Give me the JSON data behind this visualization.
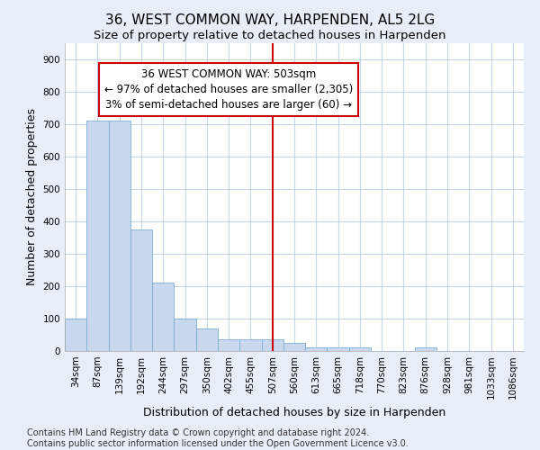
{
  "title": "36, WEST COMMON WAY, HARPENDEN, AL5 2LG",
  "subtitle": "Size of property relative to detached houses in Harpenden",
  "xlabel": "Distribution of detached houses by size in Harpenden",
  "ylabel": "Number of detached properties",
  "categories": [
    "34sqm",
    "87sqm",
    "139sqm",
    "192sqm",
    "244sqm",
    "297sqm",
    "350sqm",
    "402sqm",
    "455sqm",
    "507sqm",
    "560sqm",
    "613sqm",
    "665sqm",
    "718sqm",
    "770sqm",
    "823sqm",
    "876sqm",
    "928sqm",
    "981sqm",
    "1033sqm",
    "1086sqm"
  ],
  "values": [
    100,
    710,
    710,
    375,
    210,
    100,
    70,
    35,
    35,
    35,
    25,
    10,
    10,
    10,
    0,
    0,
    10,
    0,
    0,
    0,
    0
  ],
  "highlight_index": 9,
  "bar_color": "#c8d8ee",
  "bar_edge_color": "#7bafd4",
  "annotation_line1": "36 WEST COMMON WAY: 503sqm",
  "annotation_line2": "← 97% of detached houses are smaller (2,305)",
  "annotation_line3": "3% of semi-detached houses are larger (60) →",
  "annotation_box_color": "#ffffff",
  "annotation_border_color": "#cc0000",
  "vline_color": "#cc0000",
  "footer_text": "Contains HM Land Registry data © Crown copyright and database right 2024.\nContains public sector information licensed under the Open Government Licence v3.0.",
  "ylim": [
    0,
    950
  ],
  "yticks": [
    0,
    100,
    200,
    300,
    400,
    500,
    600,
    700,
    800,
    900
  ],
  "plot_bg_color": "#ffffff",
  "fig_bg_color": "#e8eef8",
  "title_fontsize": 11,
  "subtitle_fontsize": 9.5,
  "axis_label_fontsize": 9,
  "tick_fontsize": 7.5,
  "footer_fontsize": 7,
  "grid_color": "#c8d4e8"
}
